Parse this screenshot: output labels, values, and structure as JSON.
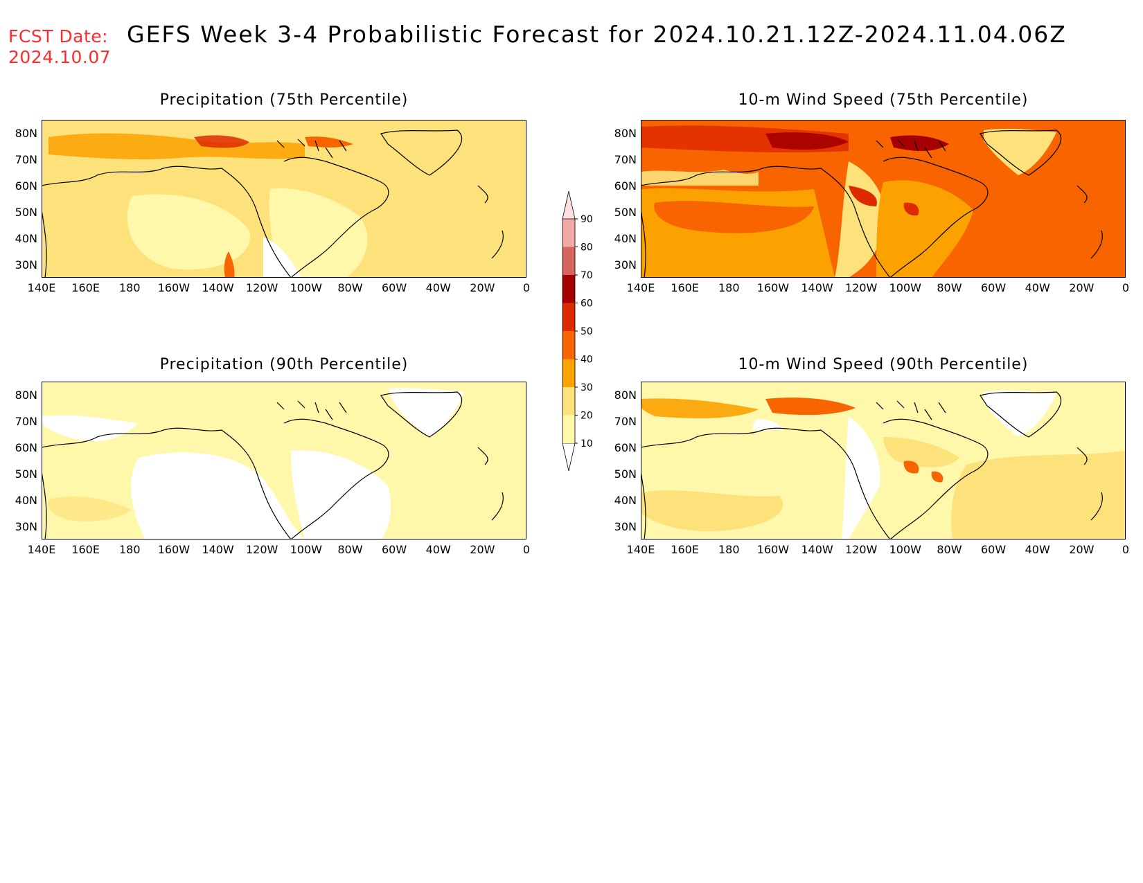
{
  "header": {
    "fcst_label": "FCST Date:",
    "fcst_date": "2024.10.07",
    "title": "GEFS Week 3-4 Probabilistic Forecast for 2024.10.21.12Z-2024.11.04.06Z"
  },
  "axes": {
    "lat_labels": [
      "80N",
      "70N",
      "60N",
      "50N",
      "40N",
      "30N"
    ],
    "lon_labels": [
      "140E",
      "160E",
      "180",
      "160W",
      "140W",
      "120W",
      "100W",
      "80W",
      "60W",
      "40W",
      "20W",
      "0"
    ]
  },
  "colors": {
    "c10_20": "#fff7aa",
    "c20_30": "#fde17a",
    "c30_40": "#fba100",
    "c40_50": "#f86400",
    "c50_60": "#de2a00",
    "c60_70": "#a60000",
    "c70_80": "#d7635f",
    "c80_90": "#f3a8a8",
    "c90_up": "#fde0e0"
  },
  "colorbar": {
    "levels": [
      "10",
      "20",
      "30",
      "40",
      "50",
      "60",
      "70",
      "80",
      "90"
    ]
  },
  "panels": [
    {
      "id": "precip75",
      "title": "Precipitation (75th Percentile)",
      "dominant_level": "20-30"
    },
    {
      "id": "wind75",
      "title": "10-m Wind Speed (75th Percentile)",
      "dominant_level": "40-50"
    },
    {
      "id": "precip90",
      "title": "Precipitation (90th Percentile)",
      "dominant_level": "10-20"
    },
    {
      "id": "wind90",
      "title": "10-m Wind Speed (90th Percentile)",
      "dominant_level": "10-20"
    }
  ]
}
